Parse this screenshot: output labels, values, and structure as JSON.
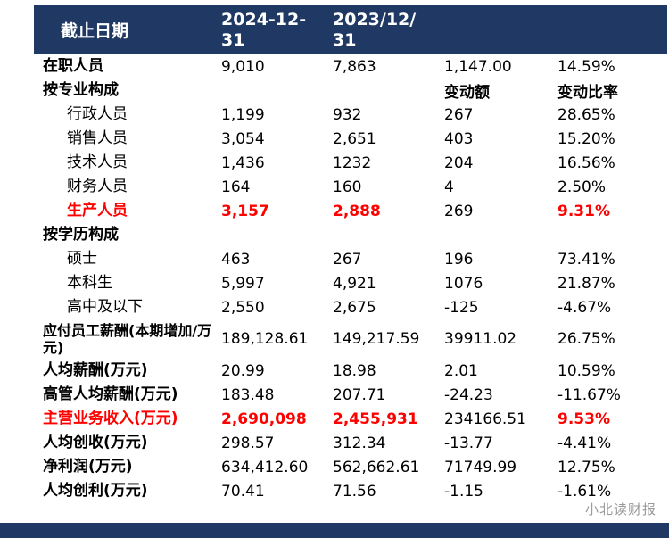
{
  "header": {
    "title": "截止日期",
    "date_2024": "2024-12-31",
    "date_2023": "2023/12/31"
  },
  "watermark": "小北读财报",
  "colors": {
    "header_bg": "#1f3864",
    "highlight_red": "#ff0000",
    "watermark_gray": "#9a9a9a",
    "body_bg": "#ffffff"
  },
  "chart_data": {
    "type": "table",
    "columns": [
      "截止日期",
      "2024-12-31",
      "2023/12/31",
      "变动额",
      "变动比率"
    ],
    "rows": [
      {
        "label": "在职人员",
        "v2024": "9,010",
        "v2023": "7,863",
        "change": "1,147.00",
        "ratio": "14.59%"
      },
      {
        "label": "按专业构成",
        "v2024": "",
        "v2023": "",
        "change": "变动额",
        "ratio": "变动比率"
      },
      {
        "label": "行政人员",
        "v2024": "1,199",
        "v2023": "932",
        "change": "267",
        "ratio": "28.65%"
      },
      {
        "label": "销售人员",
        "v2024": "3,054",
        "v2023": "2,651",
        "change": "403",
        "ratio": "15.20%"
      },
      {
        "label": "技术人员",
        "v2024": "1,436",
        "v2023": "1232",
        "change": "204",
        "ratio": "16.56%"
      },
      {
        "label": "财务人员",
        "v2024": "164",
        "v2023": "160",
        "change": "4",
        "ratio": "2.50%"
      },
      {
        "label": "生产人员",
        "v2024": "3,157",
        "v2023": "2,888",
        "change": "269",
        "ratio": "9.31%"
      },
      {
        "label": "按学历构成",
        "v2024": "",
        "v2023": "",
        "change": "",
        "ratio": ""
      },
      {
        "label": "硕士",
        "v2024": "463",
        "v2023": "267",
        "change": "196",
        "ratio": "73.41%"
      },
      {
        "label": "本科生",
        "v2024": "5,997",
        "v2023": "4,921",
        "change": "1076",
        "ratio": "21.87%"
      },
      {
        "label": "高中及以下",
        "v2024": "2,550",
        "v2023": "2,675",
        "change": "-125",
        "ratio": "-4.67%"
      },
      {
        "label": "应付员工薪酬(本期增加/万元)",
        "v2024": "189,128.61",
        "v2023": "149,217.59",
        "change": "39911.02",
        "ratio": "26.75%"
      },
      {
        "label": "人均薪酬(万元)",
        "v2024": "20.99",
        "v2023": "18.98",
        "change": "2.01",
        "ratio": "10.59%"
      },
      {
        "label": "高管人均薪酬(万元)",
        "v2024": "183.48",
        "v2023": "207.71",
        "change": "-24.23",
        "ratio": "-11.67%"
      },
      {
        "label": "主营业务收入(万元)",
        "v2024": "2,690,098",
        "v2023": "2,455,931",
        "change": "234166.51",
        "ratio": "9.53%"
      },
      {
        "label": "人均创收(万元)",
        "v2024": "298.57",
        "v2023": "312.34",
        "change": "-13.77",
        "ratio": "-4.41%"
      },
      {
        "label": "净利润(万元)",
        "v2024": "634,412.60",
        "v2023": "562,662.61",
        "change": "71749.99",
        "ratio": "12.75%"
      },
      {
        "label": "人均创利(万元)",
        "v2024": "70.41",
        "v2023": "71.56",
        "change": "-1.15",
        "ratio": "-1.61%"
      }
    ]
  }
}
